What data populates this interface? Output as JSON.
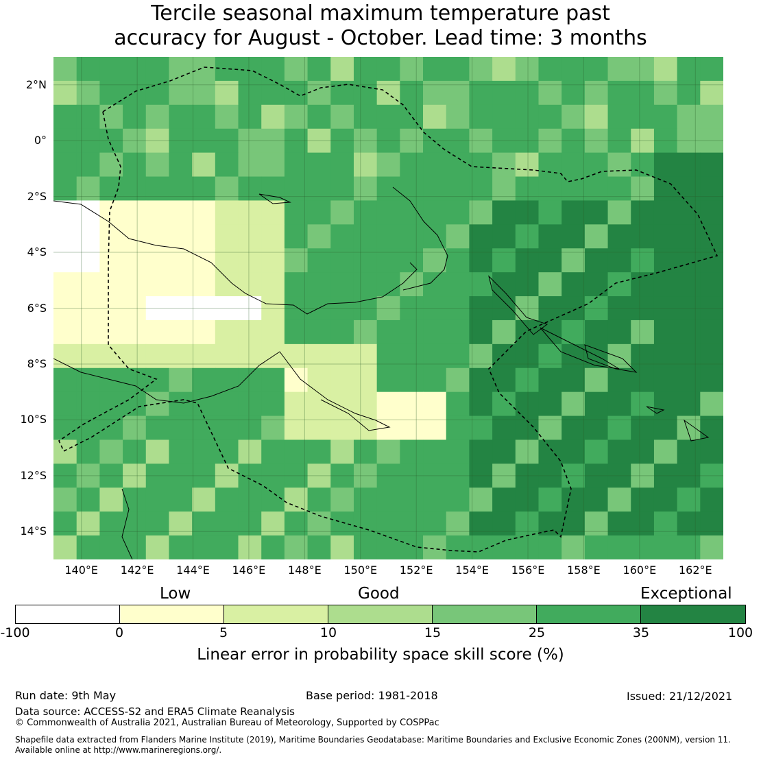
{
  "title": {
    "line1": "Tercile seasonal maximum temperature past",
    "line2": "accuracy for August - October. Lead time: 3 months"
  },
  "map": {
    "lat_labels": [
      "2°N",
      "0°",
      "2°S",
      "4°S",
      "6°S",
      "8°S",
      "10°S",
      "12°S",
      "14°S"
    ],
    "lon_labels": [
      "140°E",
      "142°E",
      "144°E",
      "146°E",
      "148°E",
      "150°E",
      "152°E",
      "154°E",
      "156°E",
      "158°E",
      "160°E",
      "162°E"
    ],
    "lon_range": [
      139,
      163
    ],
    "lat_range": [
      -15,
      3
    ],
    "gridlines": true
  },
  "colorbar": {
    "categories": [
      "Low",
      "Good",
      "Exceptional"
    ],
    "ticks": [
      "-100",
      "0",
      "5",
      "10",
      "15",
      "25",
      "35",
      "100"
    ],
    "colors": [
      "#ffffff",
      "#ffffcc",
      "#d9f0a3",
      "#addd8e",
      "#78c679",
      "#41ab5d",
      "#238443"
    ],
    "label": "Linear error in probability space skill score (%)"
  },
  "footer": {
    "run_date": "Run date: 9th May",
    "base_period": "Base period: 1981-2018",
    "issued": "Issued: 21/12/2021",
    "data_source": "Data source: ACCESS-S2 and ERA5 Climate Reanalysis",
    "copyright": "© Commonwealth of Australia 2021, Australian Bureau of Meteorology, Supported by COSPPac",
    "shapefile_line1": "Shapefile data extracted from Flanders Marine Institute (2019), Maritime Boundaries Geodatabase: Maritime Boundaries and Exclusive Economic Zones (200NM), version 11.",
    "shapefile_line2": "Available online at http://www.marineregions.org/."
  }
}
